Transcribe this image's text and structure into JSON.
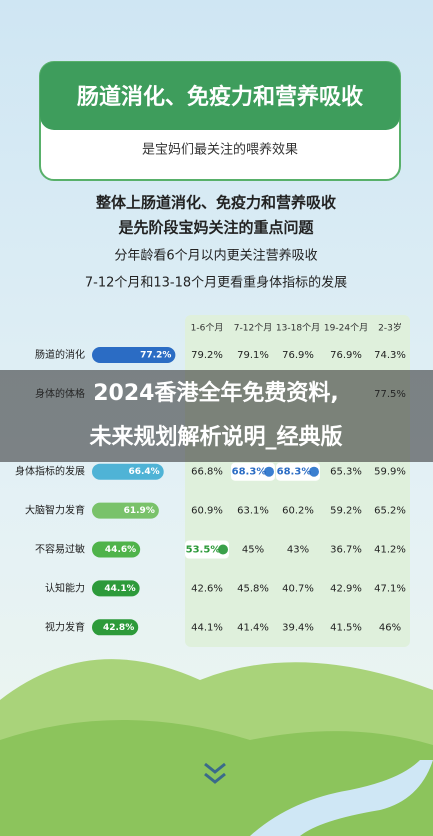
{
  "header": {
    "title": "肠道消化、免疫力和营养吸收",
    "subtitle": "是宝妈们最关注的喂养效果"
  },
  "intro": [
    "整体上肠道消化、免疫力和营养吸收",
    "是先阶段宝妈关注的重点问题",
    "分年龄看6个月以内更关注营养吸收",
    "7-12个月和13-18个月更看重身体指标的发展"
  ],
  "table": {
    "columns": [
      "1-6个月",
      "7-12个月",
      "13-18个月",
      "19-24个月",
      "2-3岁"
    ],
    "rows": [
      {
        "label": "肠道的消化",
        "overall": "77.2%",
        "cells": [
          "79.2%",
          "79.1%",
          "76.9%",
          "76.9%",
          "74.3%"
        ]
      },
      {
        "label": "身体的体格",
        "overall": null,
        "cells": [
          null,
          null,
          null,
          null,
          "77.5%"
        ]
      },
      {
        "label": null,
        "overall": null,
        "cells": [
          null,
          null,
          null,
          null,
          null
        ]
      },
      {
        "label": "身体指标的发展",
        "overall": "66.4%",
        "cells": [
          "66.8%",
          "68.3%",
          "68.3%",
          "65.3%",
          "59.9%"
        ]
      },
      {
        "label": "大脑智力发育",
        "overall": "61.9%",
        "cells": [
          "60.9%",
          "63.1%",
          "60.2%",
          "59.2%",
          "65.2%"
        ]
      },
      {
        "label": "不容易过敏",
        "overall": "44.6%",
        "cells": [
          "53.5%",
          "45%",
          "43%",
          "36.7%",
          "41.2%"
        ]
      },
      {
        "label": "认知能力",
        "overall": "44.1%",
        "cells": [
          "42.6%",
          "45.8%",
          "40.7%",
          "42.9%",
          "47.1%"
        ]
      },
      {
        "label": "视力发育",
        "overall": "42.8%",
        "cells": [
          "44.1%",
          "41.4%",
          "39.4%",
          "41.5%",
          "46%"
        ]
      }
    ]
  },
  "overlay": {
    "line1": "2024香港全年免费资料,",
    "line2": "未来规划解析说明_经典版"
  }
}
